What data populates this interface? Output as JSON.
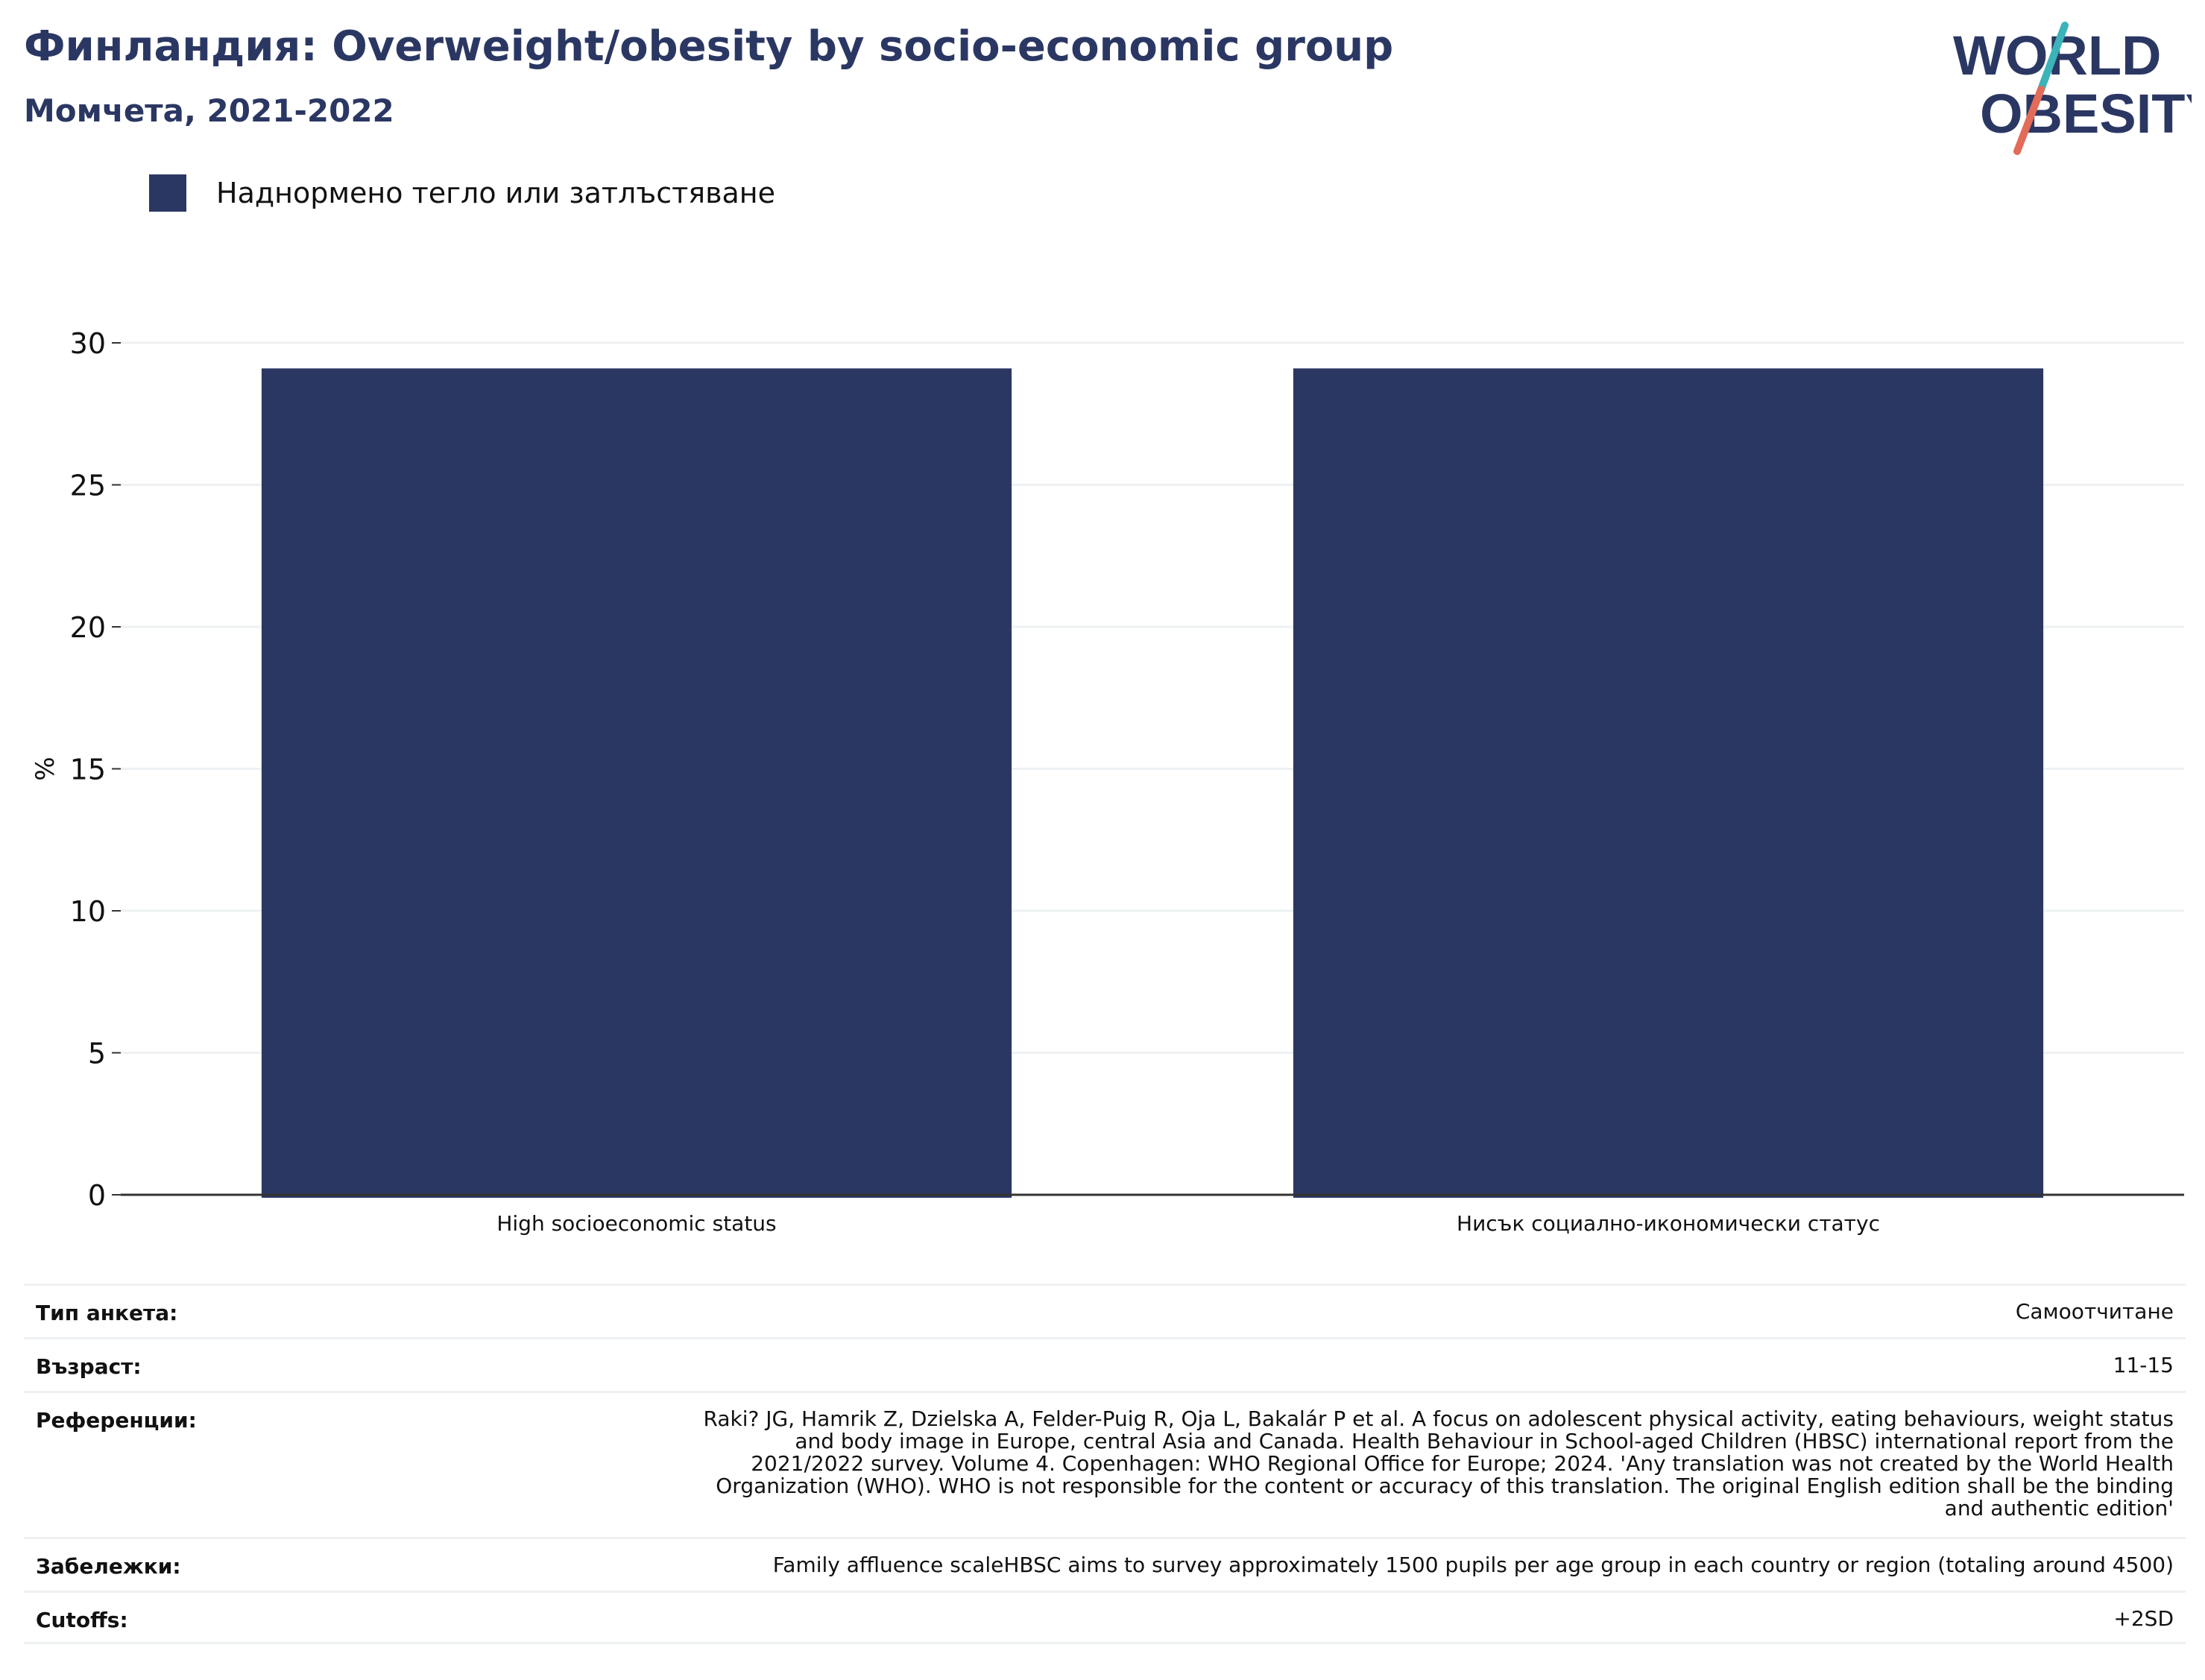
{
  "header": {
    "title": "Финландия: Overweight/obesity by socio-economic group",
    "subtitle": "Момчета, 2021-2022",
    "logo_text": [
      "WORLD",
      "OBESITY"
    ]
  },
  "colors": {
    "bar": "#2b3763",
    "title": "#2b3763",
    "logo_teal": "#3bb3b9",
    "logo_coral": "#e36b5a",
    "grid": "#eef1f3",
    "axis": "#333333"
  },
  "legend": {
    "label": "Наднормено тегло или затлъстяване"
  },
  "chart_data": {
    "type": "bar",
    "categories": [
      "High socioeconomic status",
      "Нисък социално-икономически статус"
    ],
    "series": [
      {
        "name": "Наднормено тегло или затлъстяване",
        "values": [
          29.1,
          29.1
        ]
      }
    ],
    "ylabel": "%",
    "ylim": [
      0,
      30
    ],
    "yticks": [
      0,
      5,
      10,
      15,
      20,
      25,
      30
    ],
    "grid": true,
    "legend_position": "top-left"
  },
  "meta": {
    "survey_type": {
      "label": "Тип анкета:",
      "value": "Самоотчитане"
    },
    "age": {
      "label": "Възраст:",
      "value": "11-15"
    },
    "references": {
      "label": "Референции:",
      "lines": [
        "Raki? JG, Hamrik Z, Dzielska A, Felder-Puig R, Oja L, Bakalár P et al. A focus on adolescent physical activity, eating behaviours, weight status",
        "and body image in Europe, central Asia and Canada. Health Behaviour in School-aged Children (HBSC) international report from the",
        "2021/2022 survey. Volume 4. Copenhagen: WHO Regional Office for Europe; 2024. 'Any translation was not created by the World Health",
        "Organization (WHO). WHO is not responsible for the content or accuracy of this translation. The original English edition shall be the binding",
        "and authentic edition'"
      ]
    },
    "notes": {
      "label": "Забележки:",
      "value": "Family affluence scaleHBSC aims to survey approximately 1500 pupils per age group in each country or region (totaling around 4500)"
    },
    "cutoffs": {
      "label": "Cutoffs:",
      "value": "+2SD"
    }
  }
}
